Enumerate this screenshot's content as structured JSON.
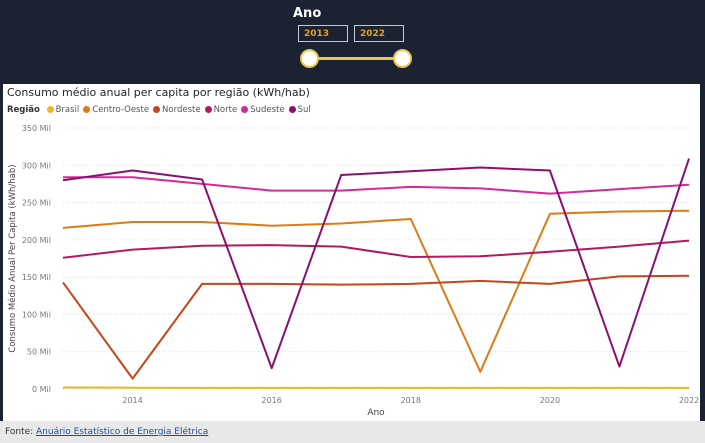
{
  "slicer": {
    "title": "Ano",
    "start": "2013",
    "end": "2022"
  },
  "chart_data": {
    "type": "line",
    "title": "Consumo médio anual per capita por região (kWh/hab)",
    "xlabel": "Ano",
    "ylabel": "Consumo Médio Anual Per Capita (kWh/hab)",
    "legend_title": "Região",
    "x": [
      2013,
      2014,
      2015,
      2016,
      2017,
      2018,
      2019,
      2020,
      2021,
      2022
    ],
    "xticks": [
      2014,
      2016,
      2018,
      2020,
      2022
    ],
    "ylim": [
      0,
      350000
    ],
    "yticks": [
      0,
      50000,
      100000,
      150000,
      200000,
      250000,
      300000,
      350000
    ],
    "ytick_labels": [
      "0 Mil",
      "50 Mil",
      "100 Mil",
      "150 Mil",
      "200 Mil",
      "250 Mil",
      "300 Mil",
      "350 Mil"
    ],
    "series": [
      {
        "name": "Brasil",
        "color": "#e8b820",
        "values": [
          2000,
          1800,
          1500,
          1500,
          1500,
          1500,
          1500,
          1500,
          1500,
          1500
        ]
      },
      {
        "name": "Centro-Oeste",
        "color": "#dc7c14",
        "values": [
          216000,
          224000,
          224000,
          219000,
          222000,
          228000,
          23000,
          235000,
          238000,
          239000
        ]
      },
      {
        "name": "Nordeste",
        "color": "#c7451a",
        "values": [
          143000,
          14000,
          141000,
          141000,
          140000,
          141000,
          145000,
          141000,
          151000,
          152000
        ]
      },
      {
        "name": "Norte",
        "color": "#b3195e",
        "values": [
          176000,
          187000,
          192000,
          193000,
          191000,
          177000,
          178000,
          184000,
          191000,
          199000
        ]
      },
      {
        "name": "Sudeste",
        "color": "#d6289a",
        "values": [
          284000,
          284000,
          275000,
          266000,
          266000,
          271000,
          269000,
          262000,
          268000,
          274000
        ]
      },
      {
        "name": "Sul",
        "color": "#8a1070",
        "values": [
          280000,
          293000,
          281000,
          28000,
          287000,
          292000,
          297000,
          293000,
          30000,
          309000
        ]
      }
    ]
  },
  "footer": {
    "label": "Fonte:",
    "source": "Anuário Estatístico de Energia Elétrica"
  }
}
